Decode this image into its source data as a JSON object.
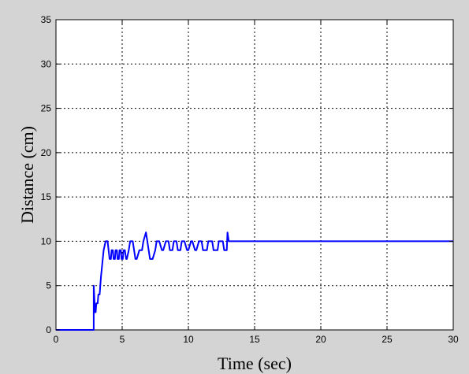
{
  "chart_data": {
    "type": "line",
    "title": "",
    "xlabel": "Time (sec)",
    "ylabel": "Distance (cm)",
    "xlim": [
      0,
      30
    ],
    "ylim": [
      0,
      35
    ],
    "xticks": [
      0,
      5,
      10,
      15,
      20,
      25,
      30
    ],
    "yticks": [
      0,
      5,
      10,
      15,
      20,
      25,
      30,
      35
    ],
    "grid": true,
    "legend": "none",
    "colors": {
      "line": "#0000ff",
      "grid": "#000000",
      "background": "#d4d4d4",
      "plot_area": "#ffffff"
    },
    "series": [
      {
        "x": [
          0,
          2.85,
          2.85,
          2.95,
          3.0,
          3.05,
          3.15,
          3.2,
          3.3,
          3.4,
          3.5,
          3.6,
          3.75,
          3.9,
          4.05,
          4.15,
          4.2,
          4.3,
          4.35,
          4.45,
          4.5,
          4.6,
          4.65,
          4.75,
          4.8,
          4.9,
          4.95,
          5.05,
          5.1,
          5.2,
          5.3,
          5.35,
          5.5,
          5.6,
          5.8,
          5.9,
          6.0,
          6.1,
          6.3,
          6.5,
          6.6,
          6.8,
          6.9,
          7.0,
          7.1,
          7.3,
          7.5,
          7.6,
          7.8,
          8.0,
          8.1,
          8.3,
          8.5,
          8.6,
          8.8,
          8.9,
          9.1,
          9.2,
          9.4,
          9.5,
          9.7,
          9.9,
          10.0,
          10.2,
          10.3,
          10.5,
          10.6,
          10.8,
          11.0,
          11.1,
          11.4,
          11.5,
          11.8,
          11.9,
          12.2,
          12.3,
          12.6,
          12.7,
          12.9,
          12.95,
          13.05,
          13.1,
          30
        ],
        "y": [
          0,
          0,
          5,
          2,
          2,
          3,
          3,
          4,
          4,
          6,
          7.5,
          9,
          10,
          10,
          8,
          8,
          9,
          9,
          8,
          8,
          9,
          9,
          8,
          8,
          9,
          9,
          8,
          8,
          9,
          9,
          8,
          8,
          9,
          10,
          10,
          9,
          8,
          8,
          9,
          9,
          10,
          11,
          10,
          9,
          8,
          8,
          9,
          10,
          10,
          9,
          9,
          10,
          10,
          9,
          9,
          10,
          10,
          9,
          9,
          10,
          10,
          9,
          9,
          10,
          10,
          9,
          9,
          10,
          10,
          9,
          9,
          10,
          10,
          9,
          9,
          10,
          10,
          9,
          9,
          11,
          10,
          10,
          10
        ]
      }
    ]
  }
}
